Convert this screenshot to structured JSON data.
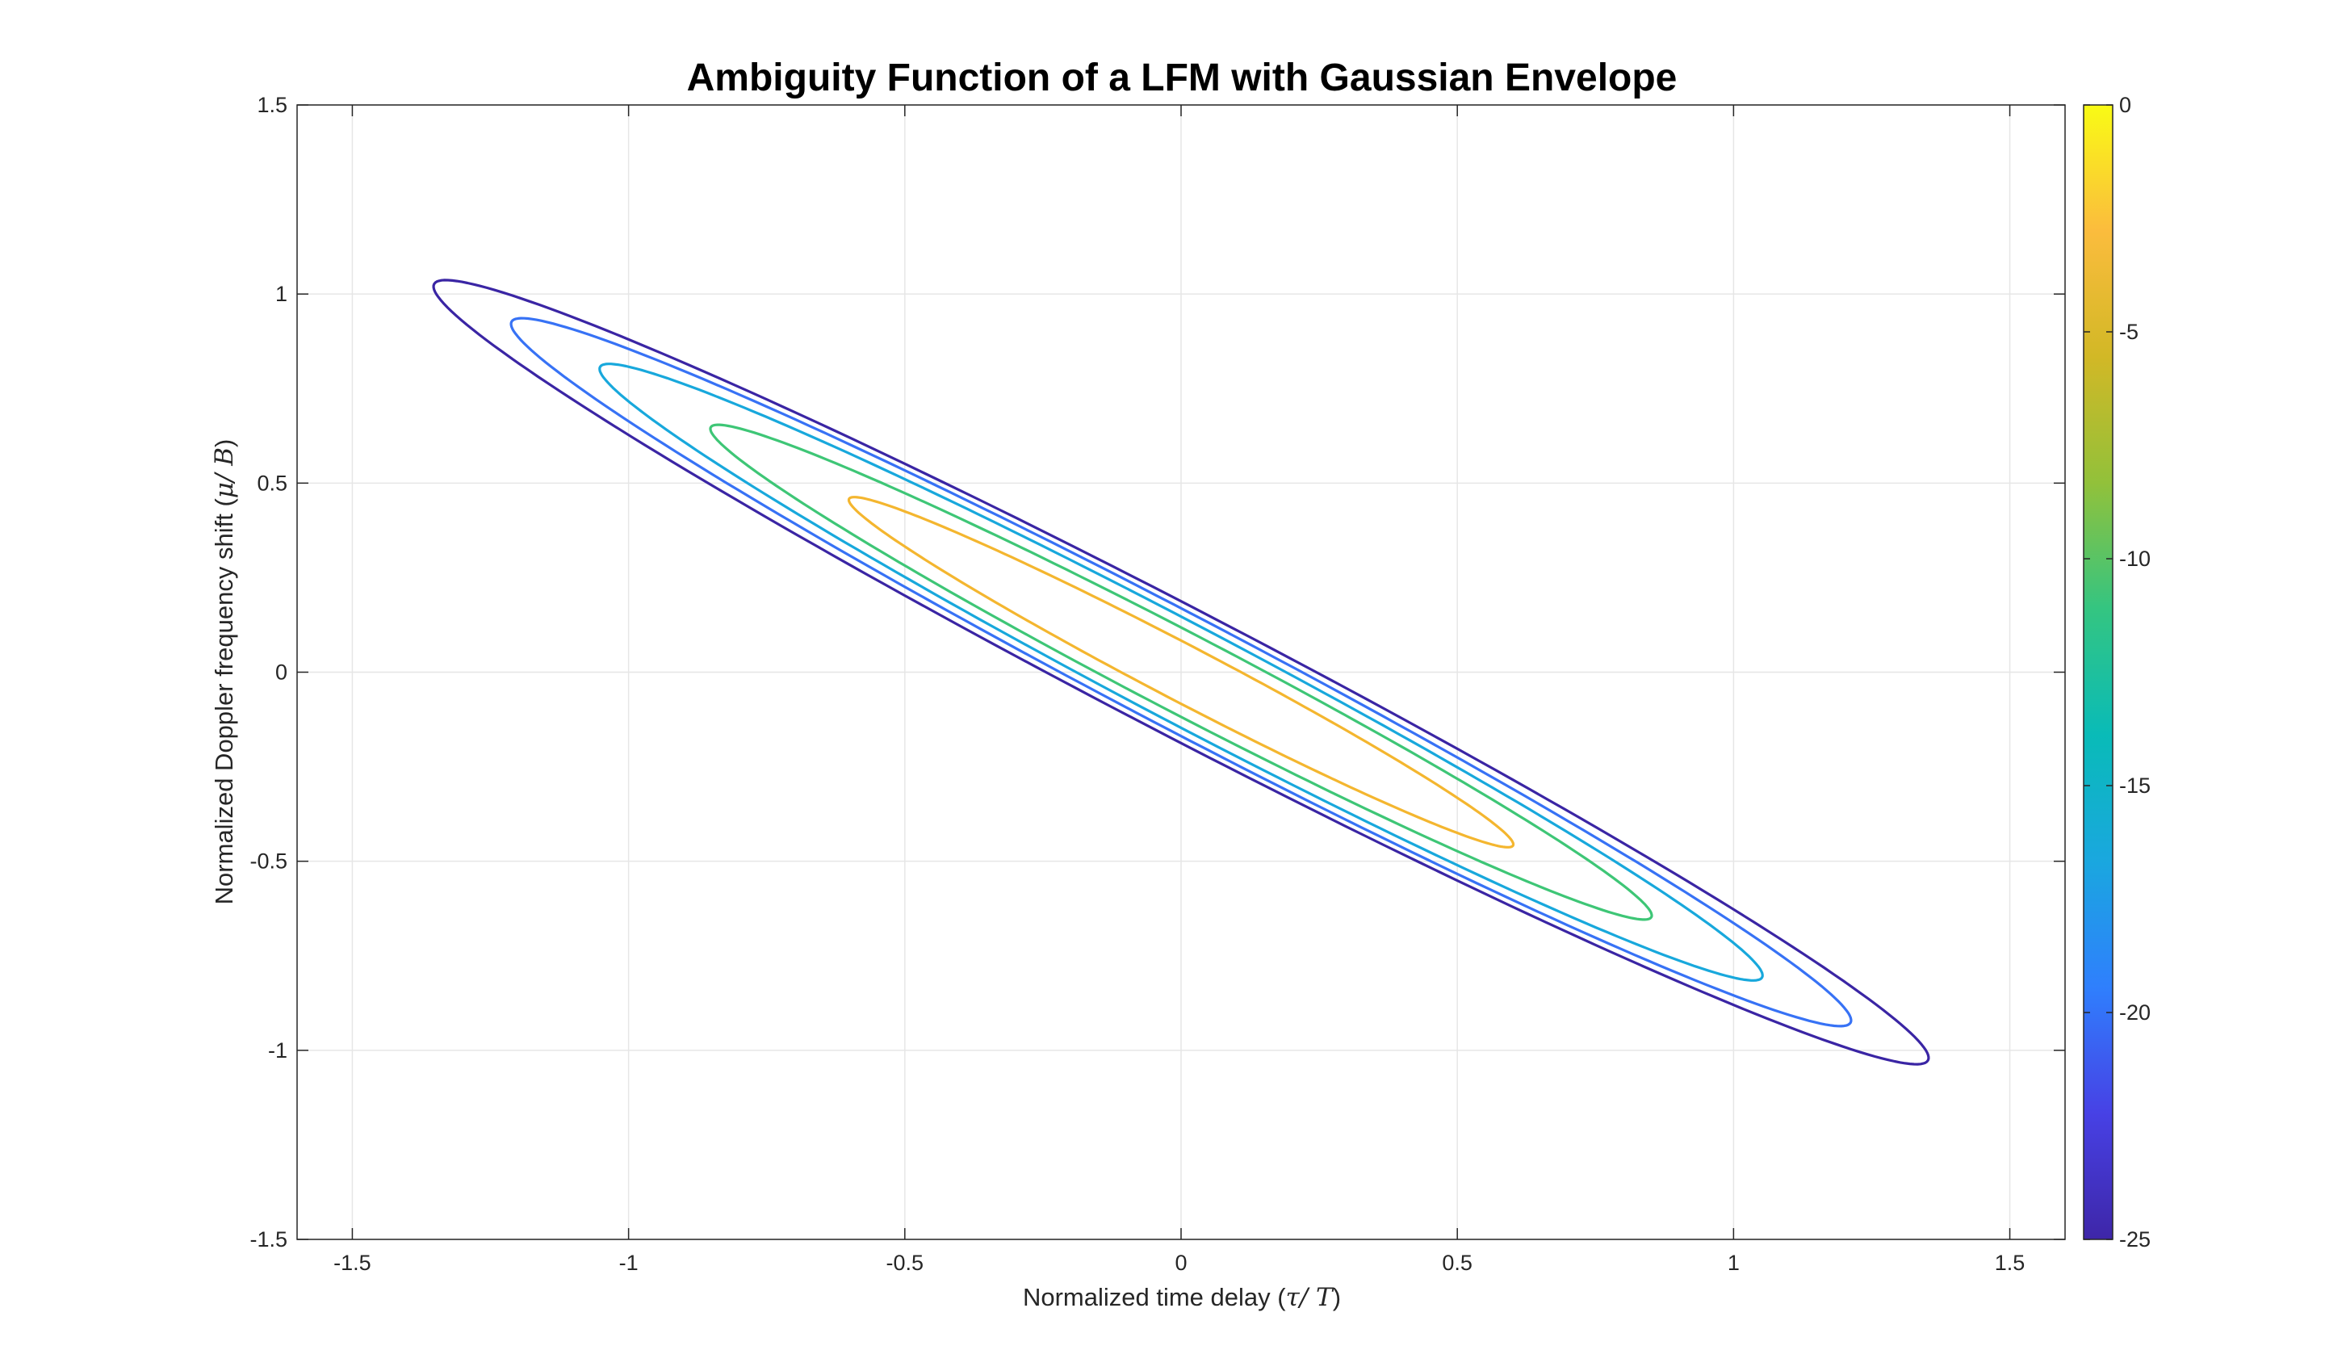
{
  "chart_data": {
    "type": "contour",
    "title": "Ambiguity Function of a LFM with Gaussian Envelope",
    "xlabel": {
      "prefix": "Normalized time delay (",
      "symbol": "τ/ T",
      "suffix": ")"
    },
    "ylabel": {
      "prefix": "Normalized Doppler frequency shift (",
      "symbol": "μ/ B",
      "suffix": ")"
    },
    "xlim": [
      -1.6,
      1.6
    ],
    "ylim": [
      -1.5,
      1.5
    ],
    "x_ticks": [
      -1.5,
      -1,
      -0.5,
      0,
      0.5,
      1,
      1.5
    ],
    "x_tick_labels": [
      "-1.5",
      "-1",
      "-0.5",
      "0",
      "0.5",
      "1",
      "1.5"
    ],
    "y_ticks": [
      -1.5,
      -1,
      -0.5,
      0,
      0.5,
      1,
      1.5
    ],
    "y_tick_labels": [
      "-1.5",
      "-1",
      "-0.5",
      "0",
      "0.5",
      "1",
      "1.5"
    ],
    "grid": true,
    "colorbar": {
      "range": [
        -25,
        0
      ],
      "ticks": [
        0,
        -5,
        -10,
        -15,
        -20,
        -25
      ],
      "tick_labels": [
        "0",
        "-5",
        "-10",
        "-15",
        "-20",
        "-25"
      ],
      "colormap": [
        "#3e26a8",
        "#4741e5",
        "#2f7ffd",
        "#1aa7df",
        "#09bbb8",
        "#34c581",
        "#92c13a",
        "#d2b826",
        "#fbbc3d",
        "#f9fb15"
      ]
    },
    "series": [
      {
        "level": -5,
        "color": "#f4b62f",
        "tip_x": 0.6,
        "tip_y": -0.46
      },
      {
        "level": -10,
        "color": "#3ec676",
        "tip_x": 0.85,
        "tip_y": -0.65
      },
      {
        "level": -15,
        "color": "#18a8dc",
        "tip_x": 1.05,
        "tip_y": -0.81
      },
      {
        "level": -20,
        "color": "#3772f5",
        "tip_x": 1.21,
        "tip_y": -0.93
      },
      {
        "level": -25,
        "color": "#3a25a4",
        "tip_x": 1.35,
        "tip_y": -1.03
      }
    ]
  }
}
